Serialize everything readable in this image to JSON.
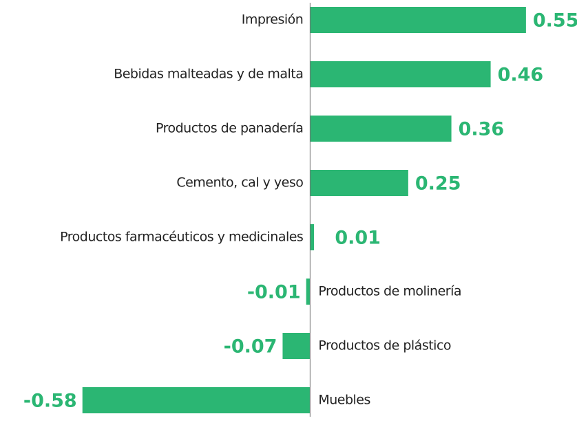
{
  "chart_data": {
    "type": "bar",
    "orientation": "horizontal",
    "categories": [
      "Impresión",
      "Bebidas malteadas y de malta",
      "Productos de panadería",
      "Cemento, cal y yeso",
      "Productos farmacéuticos y medicinales",
      "Productos de molinería",
      "Productos de plástico",
      "Muebles"
    ],
    "values": [
      0.55,
      0.46,
      0.36,
      0.25,
      0.01,
      -0.01,
      -0.07,
      -0.58
    ],
    "color": "#2bb673",
    "xlim": [
      -0.79,
      0.68
    ]
  }
}
